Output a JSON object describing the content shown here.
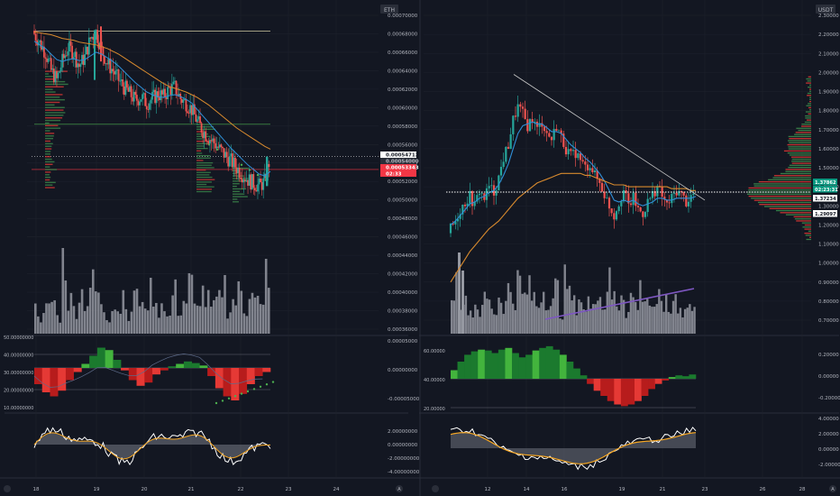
{
  "colors": {
    "background": "#131722",
    "grid": "#1e222d",
    "divider": "#2a2e39",
    "axis_text": "#b2b5be",
    "up": "#26a69a",
    "down": "#ef5350",
    "ma_fast": "#2f8fd8",
    "ma_slow": "#d88a2e",
    "volume": "#9598a1",
    "hist_pos": "#1b7a2e",
    "hist_pos_light": "#43b43d",
    "hist_neg": "#b71c1c",
    "hist_neg_light": "#e53935",
    "stoch_k": "#ffffff",
    "stoch_d": "#f5a623",
    "label_red": "#f23645",
    "label_teal": "#089981",
    "label_white": "#ffffff",
    "label_dark": "#2a2e39",
    "green_dots": "#4caf50",
    "purple": "#7e57c2",
    "trendline": "#c9c9c9",
    "white_dotted": "#ffffff"
  },
  "panes": {
    "left": {
      "quote": "ETH",
      "price_ticks": [
        "0.00070000",
        "0.00068000",
        "0.00066000",
        "0.00064000",
        "0.00062000",
        "0.00060000",
        "0.00058000",
        "0.00056000",
        "0.00054000",
        "0.00052000",
        "0.00050000",
        "0.00048000",
        "0.00046000",
        "0.00044000",
        "0.00042000",
        "0.00040000",
        "0.00038000",
        "0.00036000"
      ],
      "price_tags": [
        {
          "text": "0.00054712",
          "kind": "white"
        },
        {
          "text": "0.00054000",
          "kind": "dark"
        },
        {
          "text": "0.00053343",
          "kind": "red"
        },
        {
          "text": "02:33",
          "kind": "red"
        }
      ],
      "osc1_left_ticks": [
        "50.00000000",
        "40.00000000",
        "30.00000000",
        "20.00000000",
        "10.00000000"
      ],
      "osc1_right_ticks": [
        "0.00005000",
        "0.00000000",
        "-0.00005000"
      ],
      "osc2_ticks": [
        "2.00000000",
        "0.00000000",
        "-2.00000000",
        "-4.00000000"
      ],
      "x_ticks": [
        "18",
        "19",
        "20",
        "21",
        "22",
        "23",
        "24"
      ]
    },
    "right": {
      "quote": "USDT",
      "price_ticks": [
        "2.30000",
        "2.20000",
        "2.10000",
        "2.00000",
        "1.90000",
        "1.80000",
        "1.70000",
        "1.60000",
        "1.50000",
        "1.40000",
        "1.30000",
        "1.20000",
        "1.10000",
        "1.00000",
        "0.90000",
        "0.80000",
        "0.70000"
      ],
      "price_tags": [
        {
          "text": "1.37862",
          "kind": "teal"
        },
        {
          "text": "02:23:31",
          "kind": "teal"
        },
        {
          "text": "1.37234",
          "kind": "white"
        },
        {
          "text": "1.29097",
          "kind": "white"
        }
      ],
      "osc1_left_ticks": [
        "60.00000",
        "40.00000",
        "20.00000"
      ],
      "osc1_right_ticks": [
        "0.20000",
        "0.00000",
        "-0.20000"
      ],
      "osc2_ticks": [
        "4.00000",
        "2.00000",
        "0.00000",
        "-2.00000"
      ],
      "x_ticks": [
        "12",
        "14",
        "16",
        "19",
        "21",
        "23",
        "26",
        "28"
      ]
    }
  },
  "chart_data": [
    {
      "type": "candlestick",
      "pane": "left",
      "quote": "ETH",
      "x_ticks": [
        "18",
        "19",
        "20",
        "21",
        "22",
        "23",
        "24"
      ],
      "xlim": [
        17.8,
        24.6
      ],
      "ylim": [
        0.00035,
        0.00071
      ],
      "close_series": [
        0.00068,
        0.00067,
        0.00066,
        0.00064,
        0.00063,
        0.00065,
        0.000665,
        0.00066,
        0.000645,
        0.000655,
        0.000675,
        0.000682,
        0.000662,
        0.000648,
        0.00064,
        0.00063,
        0.000622,
        0.000615,
        0.000608,
        0.000612,
        0.000605,
        0.00061,
        0.000615,
        0.000612,
        0.00062,
        0.000622,
        0.00061,
        0.000605,
        0.000598,
        0.000585,
        0.000575,
        0.000568,
        0.000562,
        0.000555,
        0.000548,
        0.000542,
        0.000535,
        0.000528,
        0.000522,
        0.000518,
        0.000515,
        0.00052,
        0.000547
      ],
      "ma_fast": [
        0.000672,
        0.000668,
        0.000664,
        0.000658,
        0.000652,
        0.00065,
        0.000652,
        0.000653,
        0.000651,
        0.000652,
        0.000656,
        0.00066,
        0.000658,
        0.000654,
        0.00065,
        0.000645,
        0.000639,
        0.000633,
        0.000627,
        0.000622,
        0.000617,
        0.000614,
        0.000612,
        0.000611,
        0.000613,
        0.000614,
        0.000612,
        0.000609,
        0.000605,
        0.000598,
        0.000591,
        0.000584,
        0.000577,
        0.00057,
        0.000563,
        0.000556,
        0.00055,
        0.000544,
        0.000538,
        0.000533,
        0.000528,
        0.000526,
        0.000531
      ],
      "ma_slow": [
        0.000682,
        0.000681,
        0.00068,
        0.000679,
        0.000677,
        0.000675,
        0.000674,
        0.000673,
        0.000671,
        0.00067,
        0.000669,
        0.000668,
        0.000666,
        0.000664,
        0.000661,
        0.000658,
        0.000654,
        0.00065,
        0.000646,
        0.000642,
        0.000638,
        0.000634,
        0.00063,
        0.000626,
        0.000623,
        0.000621,
        0.000619,
        0.000617,
        0.000614,
        0.000611,
        0.000607,
        0.000603,
        0.000598,
        0.000593,
        0.000588,
        0.000583,
        0.000578,
        0.000574,
        0.00057,
        0.000566,
        0.000562,
        0.000558,
        0.000555
      ],
      "horizontal_levels": [
        0.000683,
        0.000582,
        0.000533
      ],
      "volume": [
        3,
        2,
        3,
        4,
        2,
        9,
        4,
        3,
        5,
        4,
        6,
        5,
        3,
        2,
        4,
        3,
        5,
        2,
        6,
        3,
        4,
        5,
        3,
        4,
        2,
        5,
        3,
        4,
        6,
        3,
        5,
        4,
        3,
        4,
        6,
        3,
        4,
        5,
        3,
        6,
        4,
        3,
        8
      ],
      "price_tags": [
        "0.00054712",
        "0.00054000",
        "0.00053343",
        "02:33"
      ]
    },
    {
      "type": "candlestick",
      "pane": "right",
      "quote": "USDT",
      "x_ticks": [
        "12",
        "14",
        "16",
        "19",
        "21",
        "23",
        "26",
        "28"
      ],
      "ylim": [
        0.65,
        2.35
      ],
      "close_series": [
        1.18,
        1.22,
        1.28,
        1.32,
        1.35,
        1.3,
        1.38,
        1.34,
        1.4,
        1.37,
        1.45,
        1.55,
        1.62,
        1.75,
        1.82,
        1.78,
        1.72,
        1.76,
        1.7,
        1.74,
        1.68,
        1.65,
        1.72,
        1.66,
        1.6,
        1.56,
        1.58,
        1.54,
        1.5,
        1.52,
        1.46,
        1.42,
        1.36,
        1.3,
        1.25,
        1.32,
        1.38,
        1.3,
        1.34,
        1.28,
        1.26,
        1.32,
        1.36,
        1.4,
        1.35,
        1.3,
        1.34,
        1.38,
        1.36,
        1.32,
        1.35,
        1.37
      ],
      "ma_fast": [
        1.2,
        1.22,
        1.25,
        1.28,
        1.31,
        1.32,
        1.34,
        1.35,
        1.37,
        1.38,
        1.41,
        1.46,
        1.52,
        1.6,
        1.68,
        1.72,
        1.73,
        1.74,
        1.73,
        1.73,
        1.71,
        1.69,
        1.69,
        1.68,
        1.65,
        1.62,
        1.6,
        1.58,
        1.55,
        1.53,
        1.5,
        1.47,
        1.43,
        1.38,
        1.33,
        1.32,
        1.33,
        1.32,
        1.33,
        1.31,
        1.3,
        1.31,
        1.32,
        1.34,
        1.34,
        1.33,
        1.33,
        1.34,
        1.34,
        1.34,
        1.34,
        1.35
      ],
      "ma_slow": [
        0.9,
        0.94,
        0.98,
        1.02,
        1.06,
        1.09,
        1.12,
        1.15,
        1.18,
        1.2,
        1.22,
        1.25,
        1.28,
        1.31,
        1.34,
        1.36,
        1.38,
        1.4,
        1.42,
        1.43,
        1.44,
        1.45,
        1.46,
        1.47,
        1.47,
        1.47,
        1.47,
        1.47,
        1.46,
        1.46,
        1.45,
        1.44,
        1.43,
        1.42,
        1.41,
        1.41,
        1.41,
        1.4,
        1.4,
        1.4,
        1.4,
        1.4,
        1.4,
        1.4,
        1.4,
        1.4,
        1.39,
        1.39,
        1.39,
        1.39,
        1.38,
        1.38
      ],
      "dotted_level": 1.37234,
      "volume": [
        6,
        7,
        5,
        4,
        3,
        4,
        3,
        5,
        4,
        3,
        5,
        4,
        6,
        5,
        7,
        5,
        6,
        5,
        4,
        6,
        5,
        4,
        6,
        3,
        7,
        5,
        4,
        5,
        3,
        4,
        6,
        5,
        4,
        7,
        5,
        4,
        6,
        3,
        5,
        4,
        6,
        5,
        4,
        3,
        5,
        4,
        3,
        5,
        4,
        3,
        4,
        3
      ],
      "price_tags": [
        "1.37862",
        "02:23:31",
        "1.37234",
        "1.29097"
      ]
    }
  ]
}
